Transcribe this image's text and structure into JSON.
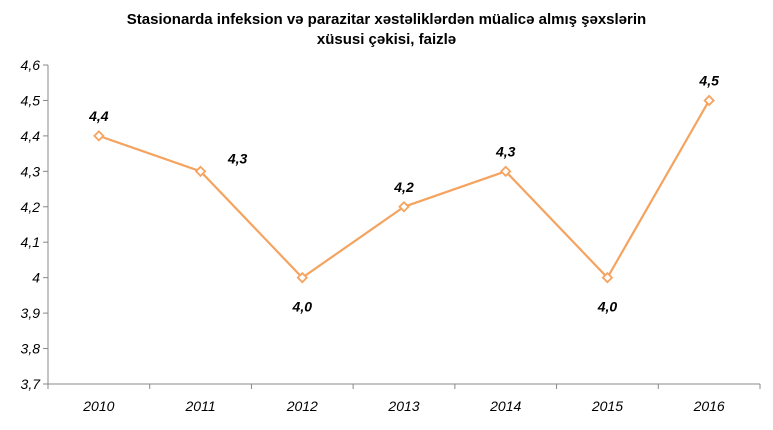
{
  "chart_data": {
    "type": "line",
    "title_line1": "Stasionarda infeksion və parazitar xəstəliklərdən müalicə almış şəxslərin",
    "title_line2": "xüsusi çəkisi, faizlə",
    "categories": [
      "2010",
      "2011",
      "2012",
      "2013",
      "2014",
      "2015",
      "2016"
    ],
    "series": [
      {
        "values": [
          4.4,
          4.3,
          4.0,
          4.2,
          4.3,
          4.0,
          4.5
        ],
        "data_labels": [
          "4,4",
          "4,3",
          "4,0",
          "4,2",
          "4,3",
          "4,0",
          "4,5"
        ],
        "color": "#F4A460"
      }
    ],
    "ylim": [
      3.7,
      4.6
    ],
    "yticks": [
      3.7,
      3.8,
      3.9,
      4.0,
      4.1,
      4.2,
      4.3,
      4.4,
      4.5,
      4.6
    ],
    "ytick_labels": [
      "3,7",
      "3,8",
      "3,9",
      "4",
      "4,1",
      "4,2",
      "4,3",
      "4,4",
      "4,5",
      "4,6"
    ],
    "grid": false,
    "line_color": "#F4A460",
    "axis_color": "#888888"
  }
}
